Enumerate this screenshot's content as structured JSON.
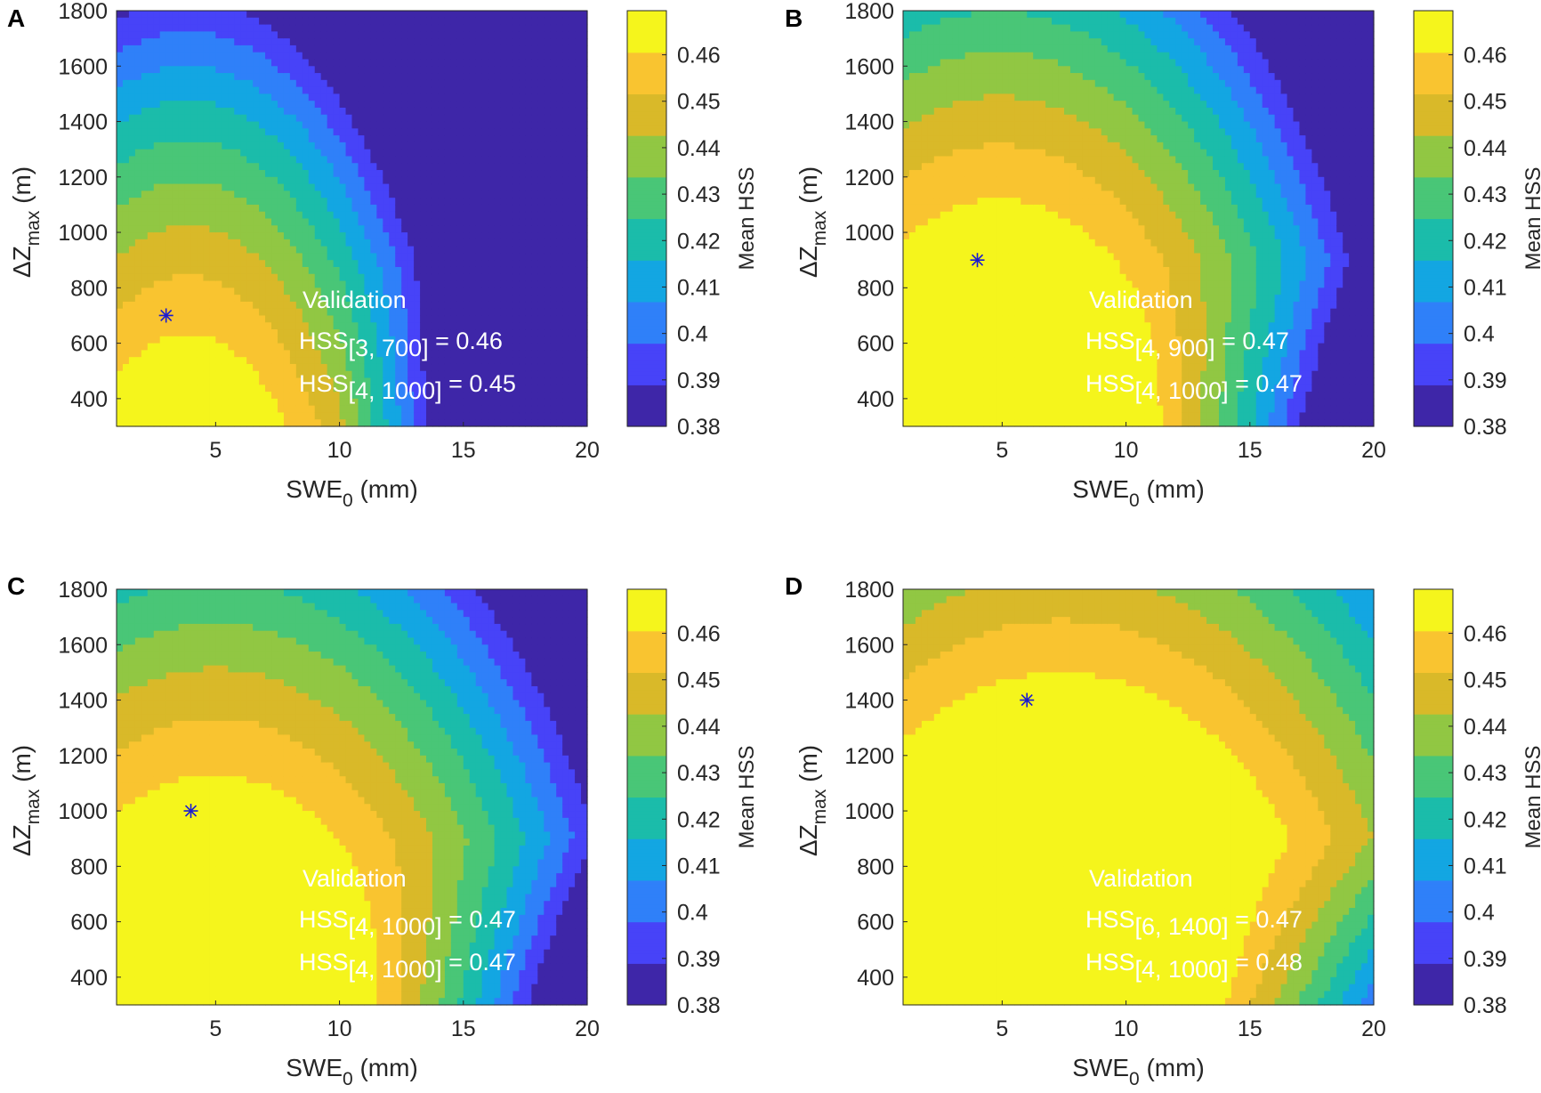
{
  "chart_data": [
    {
      "panel": "A",
      "type": "contour",
      "title": "",
      "x_label": {
        "base": "SWE",
        "sub": "0",
        "unit": " (mm)"
      },
      "y_label": {
        "base": "ΔZ",
        "sub": "max",
        "unit": " (m)"
      },
      "xlim": [
        1,
        20
      ],
      "ylim": [
        300,
        1800
      ],
      "x_ticks": [
        "5",
        "10",
        "15",
        "20"
      ],
      "y_ticks": [
        "400",
        "600",
        "800",
        "1000",
        "1200",
        "1400",
        "1600",
        "1800"
      ],
      "optimum": {
        "swe0": 3,
        "dz": 700
      },
      "annotation": {
        "title": "Validation",
        "line1": {
          "sub": "[3, 700]",
          "value": " = 0.46"
        },
        "line2": {
          "sub": "[4, 1000]",
          "value": " = 0.45"
        }
      },
      "colorbar": {
        "label": "Mean HSS",
        "min": 0.38,
        "max": 0.4695,
        "ticks": [
          "0.38",
          "0.39",
          "0.4",
          "0.41",
          "0.42",
          "0.43",
          "0.44",
          "0.45",
          "0.46"
        ]
      },
      "contour_levels": [
        0.38,
        0.39,
        0.4,
        0.41,
        0.42,
        0.43,
        0.44,
        0.45,
        0.46
      ],
      "model": {
        "x0": 3,
        "y0": 760,
        "a": 0.0008,
        "b": 1.8e-08,
        "c": 1.8e-07,
        "peak": 0.4535,
        "lx": 0.004,
        "ly": 0.00014
      },
      "hss_label": "HSS"
    },
    {
      "panel": "B",
      "type": "contour",
      "x_label": {
        "base": "SWE",
        "sub": "0",
        "unit": " (mm)"
      },
      "y_label": {
        "base": "ΔZ",
        "sub": "max",
        "unit": " (m)"
      },
      "xlim": [
        1,
        20
      ],
      "ylim": [
        300,
        1800
      ],
      "x_ticks": [
        "5",
        "10",
        "15",
        "20"
      ],
      "y_ticks": [
        "400",
        "600",
        "800",
        "1000",
        "1200",
        "1400",
        "1600",
        "1800"
      ],
      "optimum": {
        "swe0": 4,
        "dz": 900
      },
      "annotation": {
        "title": "Validation",
        "line1": {
          "sub": "[4, 900]",
          "value": " = 0.47"
        },
        "line2": {
          "sub": "[4, 1000]",
          "value": " = 0.47"
        }
      },
      "colorbar": {
        "label": "Mean HSS",
        "min": 0.38,
        "max": 0.4695,
        "ticks": [
          "0.38",
          "0.39",
          "0.4",
          "0.41",
          "0.42",
          "0.43",
          "0.44",
          "0.45",
          "0.46"
        ]
      },
      "contour_levels": [
        0.38,
        0.39,
        0.4,
        0.41,
        0.42,
        0.43,
        0.44,
        0.45,
        0.46
      ],
      "model": {
        "x0": 3.5,
        "y0": 1050,
        "a": 0.00045,
        "b": 1.7e-08,
        "c": 1.2e-07,
        "peak": 0.4625,
        "lx": 0.0035,
        "ly": 0.00013
      },
      "hss_label": "HSS"
    },
    {
      "panel": "C",
      "type": "contour",
      "x_label": {
        "base": "SWE",
        "sub": "0",
        "unit": " (mm)"
      },
      "y_label": {
        "base": "ΔZ",
        "sub": "max",
        "unit": " (m)"
      },
      "xlim": [
        1,
        20
      ],
      "ylim": [
        300,
        1800
      ],
      "x_ticks": [
        "5",
        "10",
        "15",
        "20"
      ],
      "y_ticks": [
        "400",
        "600",
        "800",
        "1000",
        "1200",
        "1400",
        "1600",
        "1800"
      ],
      "optimum": {
        "swe0": 4,
        "dz": 1000
      },
      "annotation": {
        "title": "Validation",
        "line1": {
          "sub": "[4, 1000]",
          "value": " = 0.47"
        },
        "line2": {
          "sub": "[4, 1000]",
          "value": " = 0.47"
        }
      },
      "colorbar": {
        "label": "Mean HSS",
        "min": 0.38,
        "max": 0.4695,
        "ticks": [
          "0.38",
          "0.39",
          "0.4",
          "0.41",
          "0.42",
          "0.43",
          "0.44",
          "0.45",
          "0.46"
        ]
      },
      "contour_levels": [
        0.38,
        0.39,
        0.4,
        0.41,
        0.42,
        0.43,
        0.44,
        0.45,
        0.46
      ],
      "model": {
        "x0": 3.5,
        "y0": 1030,
        "a": 0.00038,
        "b": 1.7e-08,
        "c": 1.2e-07,
        "peak": 0.4635,
        "lx": 0.0032,
        "ly": 0.00012
      },
      "hss_label": "HSS"
    },
    {
      "panel": "D",
      "type": "contour",
      "x_label": {
        "base": "SWE",
        "sub": "0",
        "unit": " (mm)"
      },
      "y_label": {
        "base": "ΔZ",
        "sub": "max",
        "unit": " (m)"
      },
      "xlim": [
        1,
        20
      ],
      "ylim": [
        300,
        1800
      ],
      "x_ticks": [
        "5",
        "10",
        "15",
        "20"
      ],
      "y_ticks": [
        "400",
        "600",
        "800",
        "1000",
        "1200",
        "1400",
        "1600",
        "1800"
      ],
      "optimum": {
        "swe0": 6,
        "dz": 1400
      },
      "annotation": {
        "title": "Validation",
        "line1": {
          "sub": "[6, 1400]",
          "value": " = 0.47"
        },
        "line2": {
          "sub": "[4, 1000]",
          "value": " = 0.48"
        }
      },
      "colorbar": {
        "label": "Mean HSS",
        "min": 0.38,
        "max": 0.4695,
        "ticks": [
          "0.38",
          "0.39",
          "0.4",
          "0.41",
          "0.42",
          "0.43",
          "0.44",
          "0.45",
          "0.46"
        ]
      },
      "contour_levels": [
        0.38,
        0.39,
        0.4,
        0.41,
        0.42,
        0.43,
        0.44,
        0.45,
        0.46
      ],
      "model": {
        "x0": 5.5,
        "y0": 1250,
        "a": 0.00028,
        "b": 1.6e-08,
        "c": 1e-07,
        "peak": 0.4705,
        "lx": 0.003,
        "ly": 0.00012
      },
      "hss_label": "HSS"
    }
  ],
  "colormap": [
    "#3e26a8",
    "#4743f8",
    "#2f80f9",
    "#13a6e2",
    "#1bbcaa",
    "#49c677",
    "#91c743",
    "#d9b929",
    "#f9c430",
    "#f5f51c"
  ]
}
